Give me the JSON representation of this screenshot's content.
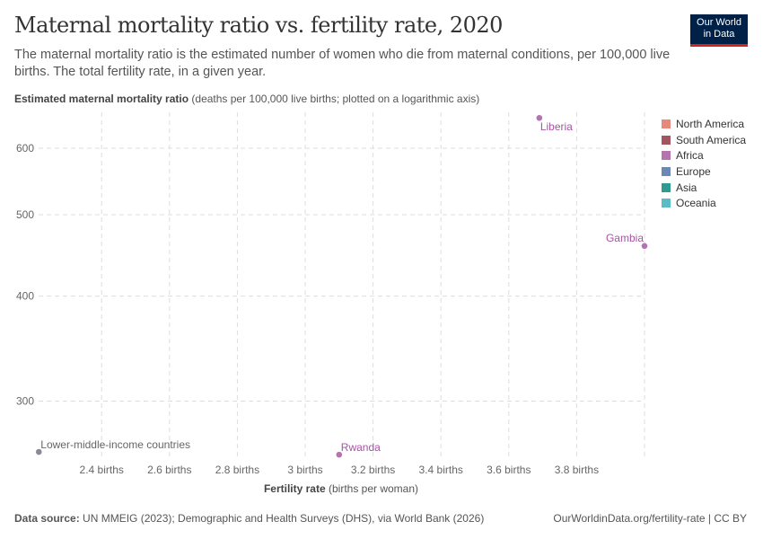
{
  "header": {
    "title": "Maternal mortality ratio vs. fertility rate, 2020",
    "subtitle": "The maternal mortality ratio is the estimated number of women who die from maternal conditions, per 100,000 live births. The total fertility rate, in a given year.",
    "logo_line1": "Our World",
    "logo_line2": "in Data"
  },
  "footer": {
    "source_label": "Data source:",
    "source_text": " UN MMEIG (2023); Demographic and Health Surveys (DHS), via World Bank (2026)",
    "url": "OurWorldinData.org/fertility-rate | CC BY"
  },
  "chart_data": {
    "type": "scatter",
    "title": "Maternal mortality ratio vs. fertility rate, 2020",
    "ylabel_bold": "Estimated maternal mortality ratio",
    "ylabel_rest": " (deaths per 100,000 live births; plotted on a logarithmic axis)",
    "xlabel_bold": "Fertility rate",
    "xlabel_rest": " (births per woman)",
    "yscale": "log",
    "ylim": [
      252,
      660
    ],
    "xlim": [
      2.215,
      4.0
    ],
    "grid": true,
    "legend_position": "right",
    "xticks": [
      {
        "v": 2.4,
        "label": "2.4 births"
      },
      {
        "v": 2.6,
        "label": "2.6 births"
      },
      {
        "v": 2.8,
        "label": "2.8 births"
      },
      {
        "v": 3,
        "label": "3 births"
      },
      {
        "v": 3.2,
        "label": "3.2 births"
      },
      {
        "v": 3.4,
        "label": "3.4 births"
      },
      {
        "v": 3.6,
        "label": "3.6 births"
      },
      {
        "v": 3.8,
        "label": "3.8 births"
      }
    ],
    "yticks": [
      {
        "v": 300,
        "label": "300"
      },
      {
        "v": 400,
        "label": "400"
      },
      {
        "v": 500,
        "label": "500"
      },
      {
        "v": 600,
        "label": "600"
      }
    ],
    "legend": [
      {
        "name": "North America",
        "color": "#e6887a"
      },
      {
        "name": "South America",
        "color": "#a2555f"
      },
      {
        "name": "Africa",
        "color": "#b574b0"
      },
      {
        "name": "Europe",
        "color": "#6d87b4"
      },
      {
        "name": "Asia",
        "color": "#2f9a8f"
      },
      {
        "name": "Oceania",
        "color": "#5bbcc8"
      }
    ],
    "points": [
      {
        "label": "Liberia",
        "x": 3.69,
        "y": 652,
        "color": "#b574b0",
        "label_color": "#a653a3"
      },
      {
        "label": "Gambia",
        "x": 4.0,
        "y": 459,
        "color": "#b574b0",
        "label_color": "#a653a3"
      },
      {
        "label": "Rwanda",
        "x": 3.1,
        "y": 259,
        "color": "#b574b0",
        "label_color": "#a653a3"
      },
      {
        "label": "Lower-middle-income countries",
        "x": 2.215,
        "y": 261,
        "color": "#8a8a95",
        "label_color": "#666"
      }
    ]
  }
}
